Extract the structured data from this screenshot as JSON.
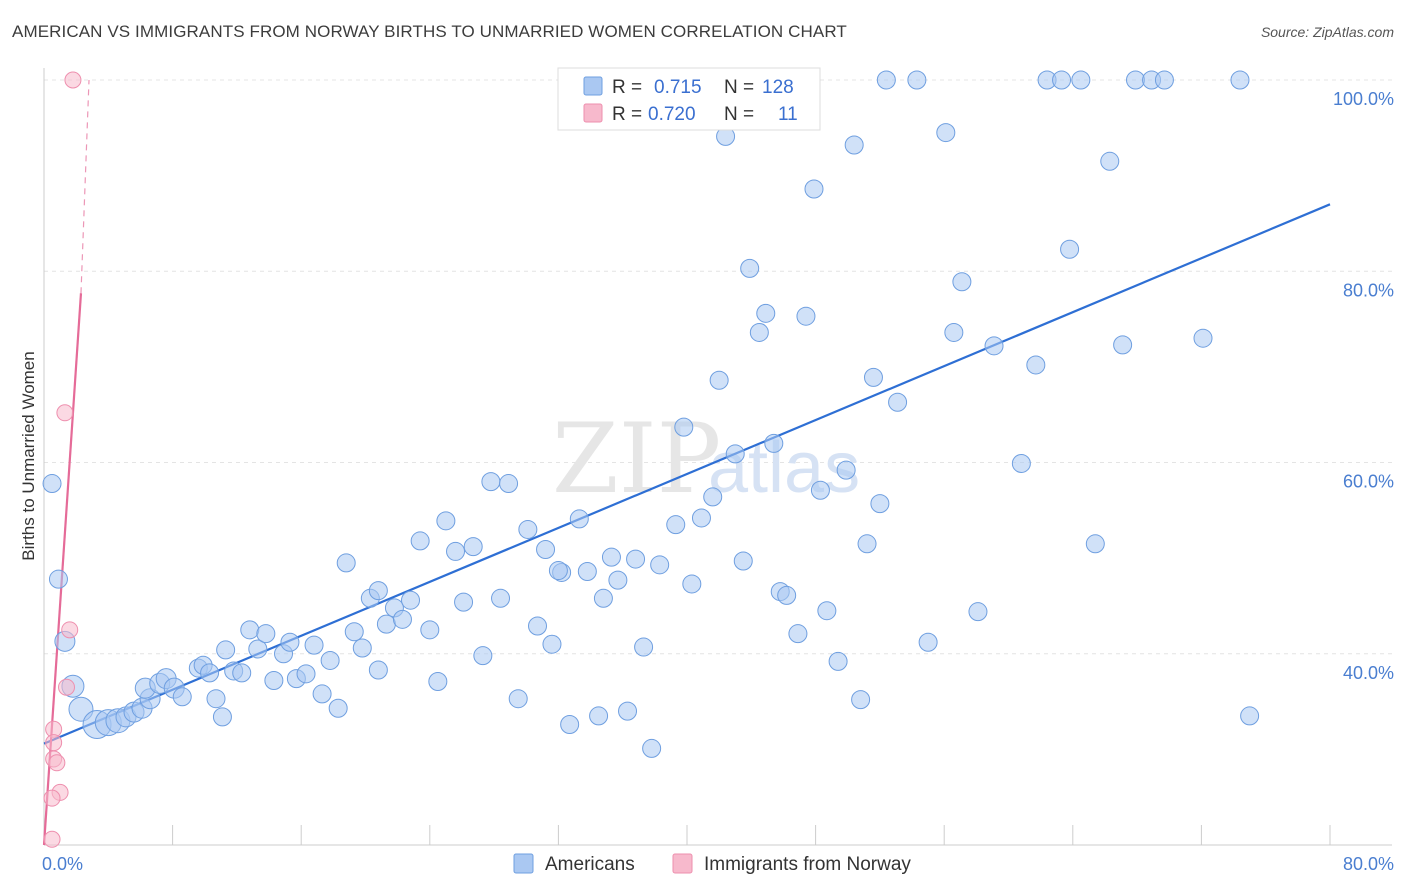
{
  "header": {
    "title": "AMERICAN VS IMMIGRANTS FROM NORWAY BIRTHS TO UNMARRIED WOMEN CORRELATION CHART",
    "source": "Source: ZipAtlas.com"
  },
  "watermark": {
    "zip": "ZIP",
    "atlas": "atlas"
  },
  "legend_top": {
    "rows": [
      {
        "r_label": "R =",
        "r_value": "0.715",
        "n_label": "N =",
        "n_value": "128",
        "color": "#aac8f2"
      },
      {
        "r_label": "R =",
        "r_value": "0.720",
        "n_label": "N =",
        "n_value": "11",
        "color": "#f7b9cc"
      }
    ]
  },
  "chart_data": {
    "type": "scatter",
    "title": "AMERICAN VS IMMIGRANTS FROM NORWAY BIRTHS TO UNMARRIED WOMEN CORRELATION CHART",
    "xlabel": "",
    "ylabel": "Births to Unmarried Women",
    "xlim": [
      0,
      80
    ],
    "ylim": [
      20,
      100
    ],
    "x_tick_labels": [
      "0.0%",
      "80.0%"
    ],
    "y_tick_labels": [
      "40.0%",
      "60.0%",
      "80.0%",
      "100.0%"
    ],
    "y_tick_values": [
      40,
      60,
      80,
      100
    ],
    "series": [
      {
        "name": "Americans",
        "color": "#aac8f2",
        "stroke": "#6f9fe0",
        "trend": {
          "x": [
            0.0,
            80.0
          ],
          "y": [
            30.6,
            87.0
          ],
          "color": "#2e6fd4"
        },
        "points": [
          [
            0.5,
            57.8,
            9
          ],
          [
            0.9,
            47.8,
            9
          ],
          [
            1.3,
            41.3,
            10
          ],
          [
            1.8,
            36.6,
            11
          ],
          [
            2.3,
            34.2,
            12
          ],
          [
            3.3,
            32.6,
            14
          ],
          [
            4.0,
            32.8,
            13
          ],
          [
            4.6,
            33.0,
            12
          ],
          [
            5.1,
            33.4,
            10
          ],
          [
            5.6,
            33.9,
            10
          ],
          [
            6.1,
            34.3,
            10
          ],
          [
            6.6,
            35.3,
            10
          ],
          [
            6.3,
            36.4,
            10
          ],
          [
            7.2,
            36.9,
            10
          ],
          [
            7.6,
            37.4,
            10
          ],
          [
            8.1,
            36.4,
            10
          ],
          [
            8.6,
            35.5,
            9
          ],
          [
            9.6,
            38.5,
            9
          ],
          [
            9.9,
            38.8,
            9
          ],
          [
            10.3,
            38.0,
            9
          ],
          [
            10.7,
            35.3,
            9
          ],
          [
            11.3,
            40.4,
            9
          ],
          [
            11.8,
            38.2,
            9
          ],
          [
            12.3,
            38.0,
            9
          ],
          [
            12.8,
            42.5,
            9
          ],
          [
            13.3,
            40.5,
            9
          ],
          [
            13.8,
            42.1,
            9
          ],
          [
            14.3,
            37.2,
            9
          ],
          [
            14.9,
            40.0,
            9
          ],
          [
            15.3,
            41.2,
            9
          ],
          [
            15.7,
            37.4,
            9
          ],
          [
            16.3,
            37.9,
            9
          ],
          [
            16.8,
            40.9,
            9
          ],
          [
            17.3,
            35.8,
            9
          ],
          [
            17.8,
            39.3,
            9
          ],
          [
            18.3,
            34.3,
            9
          ],
          [
            18.8,
            49.5,
            9
          ],
          [
            19.3,
            42.3,
            9
          ],
          [
            19.8,
            40.6,
            9
          ],
          [
            20.3,
            45.8,
            9
          ],
          [
            20.8,
            46.6,
            9
          ],
          [
            21.3,
            43.1,
            9
          ],
          [
            21.8,
            44.8,
            9
          ],
          [
            22.3,
            43.6,
            9
          ],
          [
            22.8,
            45.6,
            9
          ],
          [
            23.4,
            51.8,
            9
          ],
          [
            24.0,
            42.5,
            9
          ],
          [
            24.5,
            37.1,
            9
          ],
          [
            25.0,
            53.9,
            9
          ],
          [
            25.6,
            50.7,
            9
          ],
          [
            26.1,
            45.4,
            9
          ],
          [
            26.7,
            51.2,
            9
          ],
          [
            27.3,
            39.8,
            9
          ],
          [
            27.8,
            58.0,
            9
          ],
          [
            28.4,
            45.8,
            9
          ],
          [
            28.9,
            57.8,
            9
          ],
          [
            29.5,
            35.3,
            9
          ],
          [
            30.1,
            53.0,
            9
          ],
          [
            30.7,
            42.9,
            9
          ],
          [
            31.2,
            50.9,
            9
          ],
          [
            31.6,
            41.0,
            9
          ],
          [
            32.2,
            48.5,
            9
          ],
          [
            32.7,
            32.6,
            9
          ],
          [
            33.3,
            54.1,
            9
          ],
          [
            33.8,
            48.6,
            9
          ],
          [
            34.5,
            33.5,
            9
          ],
          [
            34.8,
            45.8,
            9
          ],
          [
            35.3,
            50.1,
            9
          ],
          [
            35.7,
            47.7,
            9
          ],
          [
            36.3,
            34.0,
            9
          ],
          [
            36.8,
            49.9,
            9
          ],
          [
            37.3,
            40.7,
            9
          ],
          [
            37.8,
            30.1,
            9
          ],
          [
            38.3,
            49.3,
            9
          ],
          [
            39.3,
            53.5,
            9
          ],
          [
            39.8,
            63.7,
            9
          ],
          [
            40.3,
            47.3,
            9
          ],
          [
            40.9,
            54.2,
            9
          ],
          [
            41.6,
            56.4,
            9
          ],
          [
            42.0,
            68.6,
            9
          ],
          [
            42.4,
            94.1,
            9
          ],
          [
            43.0,
            60.9,
            9
          ],
          [
            43.5,
            49.7,
            9
          ],
          [
            43.9,
            80.3,
            9
          ],
          [
            44.5,
            73.6,
            9
          ],
          [
            44.9,
            75.6,
            9
          ],
          [
            45.4,
            62.0,
            9
          ],
          [
            45.8,
            46.5,
            9
          ],
          [
            46.2,
            46.1,
            9
          ],
          [
            46.9,
            42.1,
            9
          ],
          [
            47.4,
            75.3,
            9
          ],
          [
            47.9,
            88.6,
            9
          ],
          [
            48.3,
            57.1,
            9
          ],
          [
            48.7,
            44.5,
            9
          ],
          [
            49.4,
            39.2,
            9
          ],
          [
            49.9,
            59.2,
            9
          ],
          [
            50.4,
            93.2,
            9
          ],
          [
            50.8,
            35.2,
            9
          ],
          [
            51.2,
            51.5,
            9
          ],
          [
            51.6,
            68.9,
            9
          ],
          [
            52.0,
            55.7,
            9
          ],
          [
            52.4,
            100,
            9
          ],
          [
            53.1,
            66.3,
            9
          ],
          [
            54.3,
            100,
            9
          ],
          [
            55.0,
            41.2,
            9
          ],
          [
            56.1,
            94.5,
            9
          ],
          [
            56.6,
            73.6,
            9
          ],
          [
            57.1,
            78.9,
            9
          ],
          [
            58.1,
            44.4,
            9
          ],
          [
            59.1,
            72.2,
            9
          ],
          [
            60.8,
            59.9,
            9
          ],
          [
            61.7,
            70.2,
            9
          ],
          [
            62.4,
            100,
            9
          ],
          [
            63.3,
            100,
            9
          ],
          [
            63.8,
            82.3,
            9
          ],
          [
            64.5,
            100,
            9
          ],
          [
            65.4,
            51.5,
            9
          ],
          [
            66.3,
            91.5,
            9
          ],
          [
            67.1,
            72.3,
            9
          ],
          [
            67.9,
            100,
            9
          ],
          [
            68.9,
            100,
            9
          ],
          [
            69.7,
            100,
            9
          ],
          [
            72.1,
            73.0,
            9
          ],
          [
            74.4,
            100,
            9
          ],
          [
            75.0,
            33.5,
            9
          ],
          [
            32.0,
            48.7,
            9
          ],
          [
            20.8,
            38.3,
            9
          ],
          [
            11.1,
            33.4,
            9
          ]
        ]
      },
      {
        "name": "Immigrants from Norway",
        "color": "#f7b9cc",
        "stroke": "#ee8fae",
        "trend": {
          "x": [
            0.0,
            2.3
          ],
          "y": [
            20.0,
            77.7
          ],
          "dash_to": [
            2.8,
            100.0
          ],
          "color": "#e56b98"
        },
        "points": [
          [
            1.8,
            100,
            8
          ],
          [
            1.3,
            65.2,
            8
          ],
          [
            1.6,
            42.5,
            8
          ],
          [
            1.4,
            36.5,
            8
          ],
          [
            0.6,
            32.1,
            8
          ],
          [
            0.6,
            30.7,
            8
          ],
          [
            0.6,
            29.0,
            8
          ],
          [
            0.8,
            28.6,
            8
          ],
          [
            1.0,
            25.5,
            8
          ],
          [
            0.5,
            24.9,
            8
          ],
          [
            0.5,
            20.6,
            8
          ]
        ]
      }
    ],
    "legend": [
      "Americans",
      "Immigrants from Norway"
    ]
  }
}
